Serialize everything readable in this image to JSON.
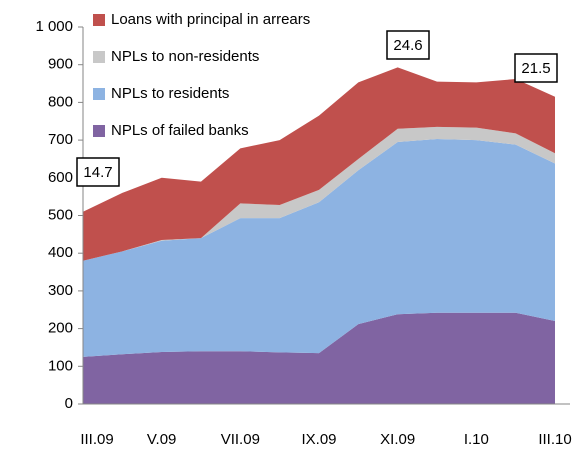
{
  "chart_data": {
    "type": "stacked_area",
    "categories": [
      "III.09",
      null,
      "V.09",
      null,
      "VII.09",
      null,
      "IX.09",
      null,
      "XI.09",
      null,
      "I.10",
      null,
      "III.10"
    ],
    "series": [
      {
        "name": "NPLs of failed banks",
        "color": "#8064a2",
        "values": [
          125,
          132,
          138,
          140,
          140,
          137,
          135,
          212,
          238,
          242,
          242,
          242,
          220
        ]
      },
      {
        "name": "NPLs to residents",
        "color": "#8db3e2",
        "values": [
          255,
          273,
          295,
          300,
          353,
          356,
          400,
          408,
          457,
          461,
          458,
          446,
          418
        ]
      },
      {
        "name": "NPLs to non-residents",
        "color": "#c8c8c8",
        "values": [
          0,
          0,
          2,
          0,
          39,
          35,
          33,
          30,
          35,
          32,
          33,
          30,
          27
        ]
      },
      {
        "name": "Loans with principal in arrears",
        "color": "#c0504d",
        "values": [
          130,
          155,
          165,
          150,
          146,
          172,
          197,
          203,
          163,
          120,
          120,
          144,
          150
        ]
      }
    ],
    "ylim": [
      0,
      1000
    ],
    "yticks": [
      0,
      100,
      200,
      300,
      400,
      500,
      600,
      700,
      800,
      900,
      {
        "value": 1000,
        "label": "1 000"
      }
    ],
    "annotations": [
      "14.7",
      "24.6",
      "21.5"
    ]
  }
}
